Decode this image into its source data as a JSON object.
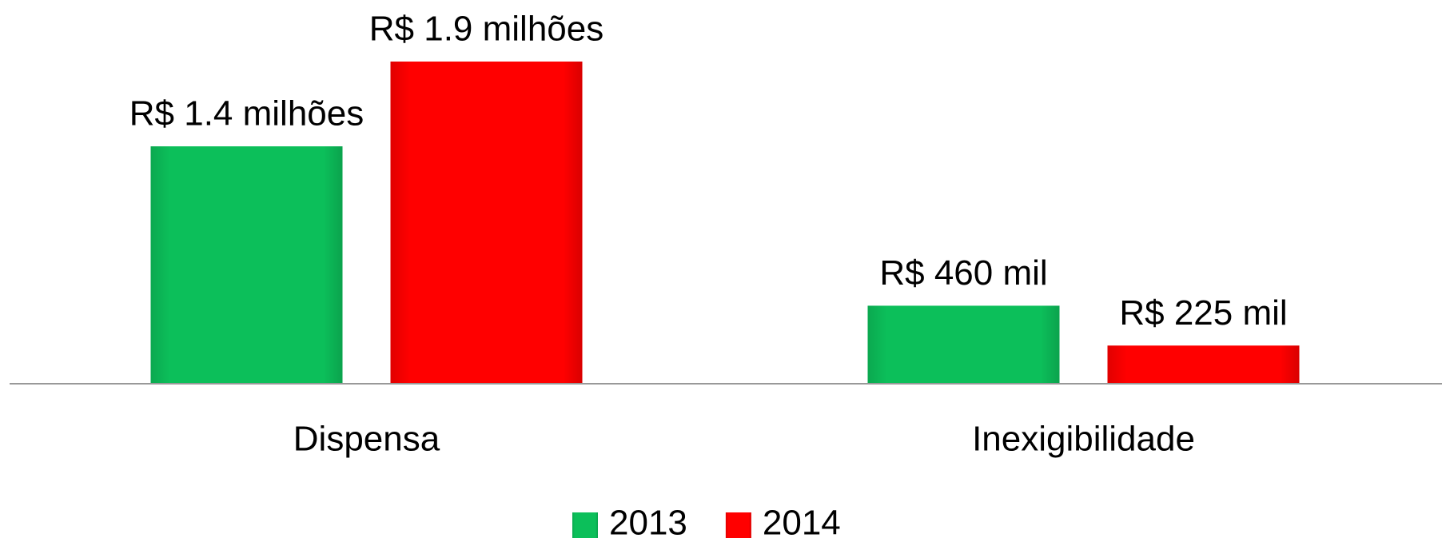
{
  "chart_data": {
    "type": "bar",
    "categories": [
      "Dispensa",
      "Inexigibilidade"
    ],
    "series": [
      {
        "name": "2013",
        "color": "#0cbf5a",
        "values": [
          1400000,
          460000
        ],
        "value_labels": [
          "R$ 1.4 milhões",
          "R$ 460 mil"
        ]
      },
      {
        "name": "2014",
        "color": "#ff0000",
        "values": [
          1900000,
          225000
        ],
        "value_labels": [
          "R$ 1.9 milhões",
          "R$ 225 mil"
        ]
      }
    ],
    "legend": "bottom"
  }
}
